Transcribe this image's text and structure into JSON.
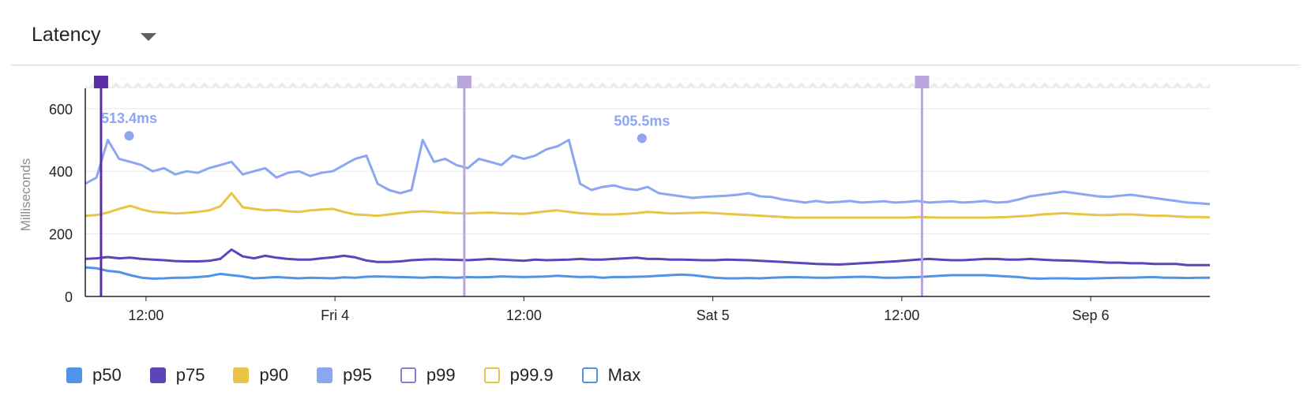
{
  "widget": {
    "title": "Latency"
  },
  "chart_data": {
    "type": "line",
    "title": "Latency",
    "ylabel": "Milliseconds",
    "xlabel": "",
    "ylim": [
      0,
      650
    ],
    "yticks": [
      0,
      200,
      400,
      600
    ],
    "xlim": [
      0,
      100
    ],
    "xticks": [
      {
        "x": 5.4,
        "label": "12:00"
      },
      {
        "x": 22.2,
        "label": "Fri 4"
      },
      {
        "x": 39.0,
        "label": "12:00"
      },
      {
        "x": 55.8,
        "label": "Sat 5"
      },
      {
        "x": 72.6,
        "label": "12:00"
      },
      {
        "x": 89.4,
        "label": "Sep 6"
      }
    ],
    "grid": true,
    "legend_position": "bottom",
    "events": [
      {
        "x": 1.4,
        "color": "#5b2fa6"
      },
      {
        "x": 33.7,
        "color": "#b9a6dd"
      },
      {
        "x": 74.4,
        "color": "#b9a6dd"
      }
    ],
    "annotations": [
      {
        "series": "p95",
        "x": 3.9,
        "y": 513.4,
        "label": "513.4ms"
      },
      {
        "series": "p95",
        "x": 49.5,
        "y": 505.5,
        "label": "505.5ms"
      }
    ],
    "series": [
      {
        "name": "p50",
        "color": "#4f94e8",
        "filled": true,
        "values": [
          93,
          90,
          82,
          78,
          68,
          60,
          57,
          58,
          60,
          60,
          62,
          65,
          72,
          68,
          64,
          58,
          60,
          62,
          60,
          58,
          60,
          59,
          58,
          61,
          60,
          63,
          64,
          63,
          62,
          61,
          60,
          62,
          61,
          60,
          62,
          61,
          62,
          64,
          63,
          62,
          63,
          64,
          66,
          64,
          62,
          63,
          60,
          62,
          62,
          63,
          64,
          66,
          68,
          70,
          68,
          64,
          60,
          58,
          58,
          59,
          58,
          60,
          61,
          62,
          61,
          60,
          60,
          61,
          62,
          63,
          62,
          60,
          60,
          61,
          62,
          64,
          66,
          68,
          68,
          68,
          68,
          66,
          64,
          62,
          58,
          57,
          58,
          58,
          57,
          57,
          58,
          59,
          60,
          60,
          61,
          62,
          60,
          60,
          59,
          60,
          60
        ]
      },
      {
        "series_note": "",
        "name": "p75",
        "color": "#5d44b9",
        "filled": true,
        "values": [
          120,
          122,
          126,
          122,
          124,
          120,
          118,
          116,
          113,
          112,
          112,
          114,
          120,
          150,
          128,
          122,
          130,
          124,
          120,
          118,
          118,
          122,
          125,
          130,
          125,
          115,
          110,
          110,
          112,
          116,
          118,
          119,
          118,
          117,
          116,
          118,
          120,
          118,
          116,
          114,
          118,
          116,
          117,
          118,
          120,
          118,
          118,
          120,
          122,
          124,
          120,
          120,
          118,
          118,
          117,
          116,
          116,
          118,
          117,
          116,
          114,
          112,
          110,
          108,
          106,
          104,
          103,
          102,
          104,
          106,
          108,
          110,
          112,
          115,
          118,
          120,
          118,
          116,
          116,
          118,
          120,
          120,
          118,
          118,
          120,
          118,
          116,
          115,
          114,
          112,
          110,
          108,
          108,
          106,
          106,
          104,
          104,
          104,
          100,
          100,
          100
        ]
      },
      {
        "name": "p90",
        "color": "#e8c547",
        "filled": true,
        "values": [
          258,
          260,
          268,
          280,
          290,
          278,
          270,
          268,
          265,
          267,
          270,
          275,
          288,
          330,
          285,
          280,
          275,
          277,
          272,
          270,
          275,
          278,
          280,
          270,
          262,
          260,
          258,
          262,
          266,
          270,
          272,
          270,
          268,
          266,
          265,
          267,
          268,
          266,
          265,
          264,
          268,
          272,
          275,
          270,
          266,
          264,
          262,
          262,
          264,
          266,
          270,
          268,
          265,
          266,
          267,
          268,
          266,
          264,
          262,
          260,
          258,
          256,
          254,
          252,
          252,
          252,
          252,
          252,
          252,
          252,
          252,
          252,
          252,
          252,
          254,
          253,
          252,
          252,
          252,
          252,
          252,
          253,
          254,
          256,
          258,
          262,
          264,
          266,
          264,
          262,
          260,
          260,
          262,
          262,
          260,
          258,
          258,
          256,
          254,
          254,
          253
        ]
      },
      {
        "name": "p95",
        "color": "#8ba6f2",
        "filled": true,
        "values": [
          360,
          380,
          500,
          440,
          430,
          420,
          400,
          410,
          390,
          400,
          395,
          410,
          420,
          430,
          390,
          400,
          410,
          380,
          395,
          400,
          385,
          395,
          400,
          420,
          440,
          450,
          360,
          340,
          330,
          340,
          500,
          430,
          440,
          420,
          410,
          440,
          430,
          420,
          450,
          440,
          450,
          470,
          480,
          500,
          360,
          340,
          350,
          355,
          345,
          340,
          350,
          330,
          325,
          320,
          315,
          318,
          320,
          322,
          325,
          330,
          320,
          318,
          310,
          305,
          300,
          305,
          300,
          302,
          305,
          300,
          302,
          304,
          300,
          302,
          305,
          300,
          302,
          304,
          300,
          302,
          305,
          300,
          302,
          310,
          320,
          325,
          330,
          335,
          330,
          325,
          320,
          318,
          322,
          325,
          320,
          315,
          310,
          305,
          300,
          298,
          295
        ]
      },
      {
        "name": "p99",
        "color": "#8e7bd6",
        "filled": false,
        "values": []
      },
      {
        "name": "p99.9",
        "color": "#e8c547",
        "filled": false,
        "values": []
      },
      {
        "name": "Max",
        "color": "#4f94e8",
        "filled": false,
        "values": []
      }
    ]
  }
}
